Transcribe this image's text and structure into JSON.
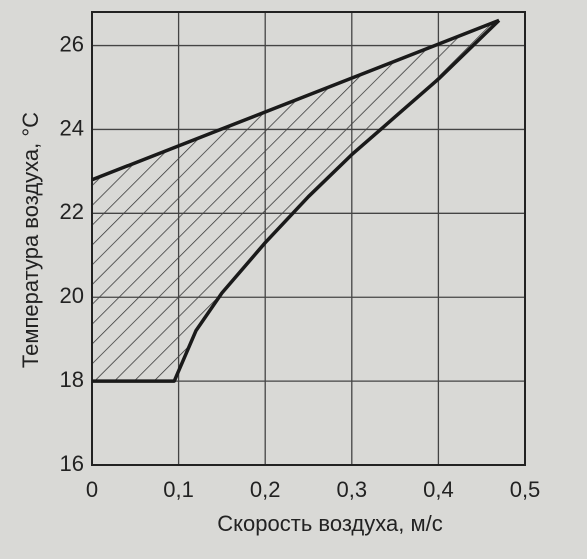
{
  "chart_data": {
    "type": "area",
    "x_label": "Скорость  воздуха, м/с",
    "y_label": "Температура  воздуха, °С",
    "series": [
      {
        "x": [
          0,
          0.47
        ],
        "values": [
          22.8,
          26.6
        ],
        "color": "#1a1a1a"
      },
      {
        "x": [
          0,
          0.095,
          0.12,
          0.15,
          0.2,
          0.25,
          0.3,
          0.35,
          0.4,
          0.47
        ],
        "values": [
          18,
          18,
          19.2,
          20.1,
          21.3,
          22.4,
          23.4,
          24.3,
          25.2,
          26.6
        ],
        "color": "#1a1a1a"
      }
    ],
    "xlim": [
      0,
      0.5
    ],
    "ylim": [
      16,
      26.8
    ],
    "xticks": [
      0,
      {
        "value": 0.1,
        "label": "0,1"
      },
      {
        "value": 0.2,
        "label": "0,2"
      },
      {
        "value": 0.3,
        "label": "0,3"
      },
      {
        "value": 0.4,
        "label": "0,4"
      },
      {
        "value": 0.5,
        "label": "0,5"
      }
    ],
    "yticks": [
      16,
      18,
      20,
      22,
      24,
      26
    ],
    "grid": true,
    "hatch": true
  }
}
